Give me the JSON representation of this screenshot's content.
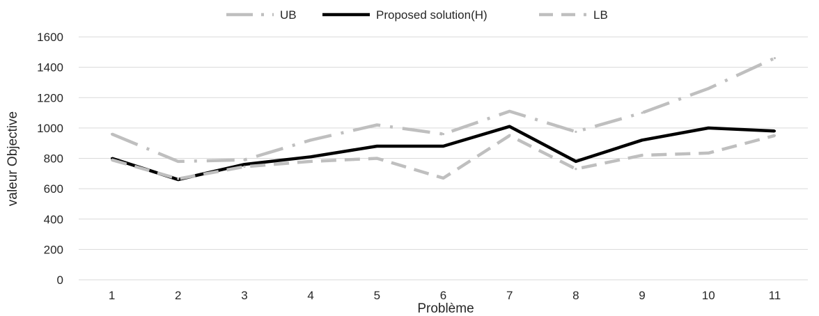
{
  "chart_data": {
    "type": "line",
    "title": "",
    "xlabel": "Problème",
    "ylabel": "valeur Objective",
    "categories": [
      "1",
      "2",
      "3",
      "4",
      "5",
      "6",
      "7",
      "8",
      "9",
      "10",
      "11"
    ],
    "ylim": [
      0,
      1600
    ],
    "yticks": [
      0,
      200,
      400,
      600,
      800,
      1000,
      1200,
      1400,
      1600
    ],
    "grid": "horizontal",
    "legend_position": "top",
    "series": [
      {
        "name": "UB",
        "style": "long-dash-dot",
        "color": "#bfbfbf",
        "values": [
          960,
          780,
          790,
          920,
          1020,
          960,
          1110,
          975,
          1100,
          1260,
          1460
        ]
      },
      {
        "name": "Proposed solution(H)",
        "style": "solid",
        "color": "#000000",
        "values": [
          800,
          660,
          760,
          810,
          880,
          880,
          1010,
          780,
          920,
          1000,
          980
        ]
      },
      {
        "name": "LB",
        "style": "dash",
        "color": "#bfbfbf",
        "values": [
          790,
          665,
          745,
          780,
          800,
          670,
          950,
          730,
          820,
          835,
          950
        ]
      }
    ]
  }
}
